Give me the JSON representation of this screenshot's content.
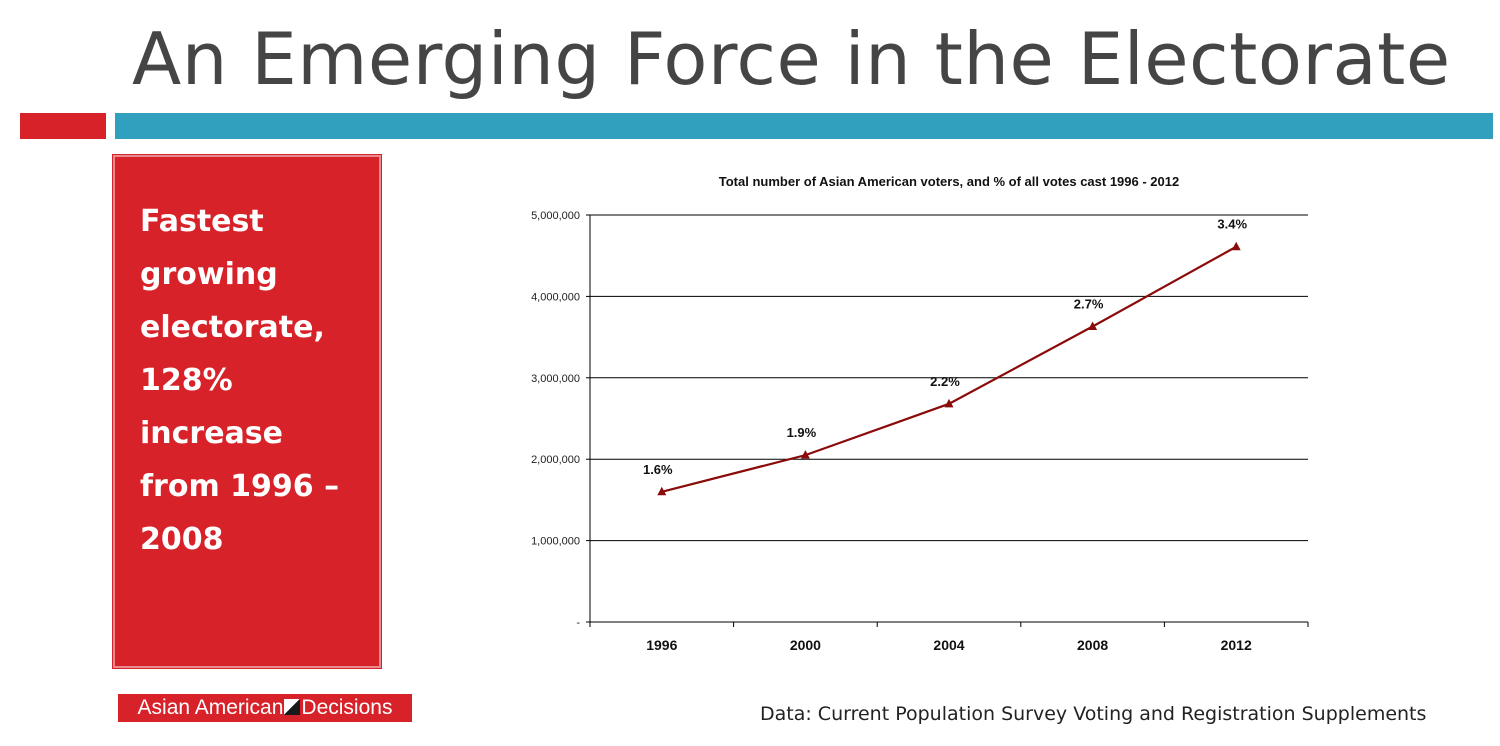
{
  "slide": {
    "title": "An Emerging Force in the Electorate",
    "callout_lines": [
      "Fastest",
      "growing",
      "electorate,",
      "128%",
      "increase",
      "from 1996 –",
      "2008"
    ],
    "brand_left": "Asian American",
    "brand_right": "Decisions",
    "source": "Data: Current Population Survey Voting and Registration Supplements"
  },
  "colors": {
    "accent_red": "#d7222a",
    "accent_blue": "#31a0bf",
    "title_gray": "#454545",
    "series_line": "#8b0a0a"
  },
  "chart_data": {
    "type": "line",
    "title": "Total number of Asian American voters, and % of all votes cast 1996 - 2012",
    "xlabel": "",
    "ylabel": "",
    "categories": [
      "1996",
      "2000",
      "2004",
      "2008",
      "2012"
    ],
    "series": [
      {
        "values": [
          1600000,
          2050000,
          2680000,
          3630000,
          4610000
        ],
        "data_labels": [
          "1.6%",
          "1.9%",
          "2.2%",
          "2.7%",
          "3.4%"
        ]
      }
    ],
    "ylim": [
      0,
      5000000
    ],
    "y_ticks": [
      0,
      1000000,
      2000000,
      3000000,
      4000000,
      5000000
    ],
    "y_tick_labels": [
      "-",
      "1,000,000",
      "2,000,000",
      "3,000,000",
      "4,000,000",
      "5,000,000"
    ],
    "grid": true,
    "legend": "none"
  }
}
